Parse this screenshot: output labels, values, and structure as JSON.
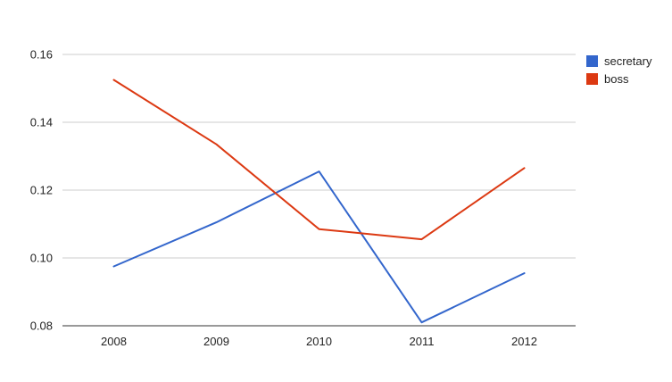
{
  "chart_data": {
    "type": "line",
    "title": "",
    "xlabel": "",
    "ylabel": "",
    "categories": [
      "2008",
      "2009",
      "2010",
      "2011",
      "2012"
    ],
    "ylim": [
      0.08,
      0.16
    ],
    "yticks": [
      "0.16",
      "0.14",
      "0.12",
      "0.10",
      "0.08"
    ],
    "ytick_values": [
      0.16,
      0.14,
      0.12,
      0.1,
      0.08
    ],
    "grid": true,
    "legend_position": "right",
    "series": [
      {
        "name": "secretary",
        "color": "#3366cc",
        "values": [
          0.0975,
          0.1105,
          0.1255,
          0.081,
          0.0955
        ]
      },
      {
        "name": "boss",
        "color": "#dc3912",
        "values": [
          0.1525,
          0.1335,
          0.1085,
          0.1055,
          0.1265
        ]
      }
    ]
  }
}
